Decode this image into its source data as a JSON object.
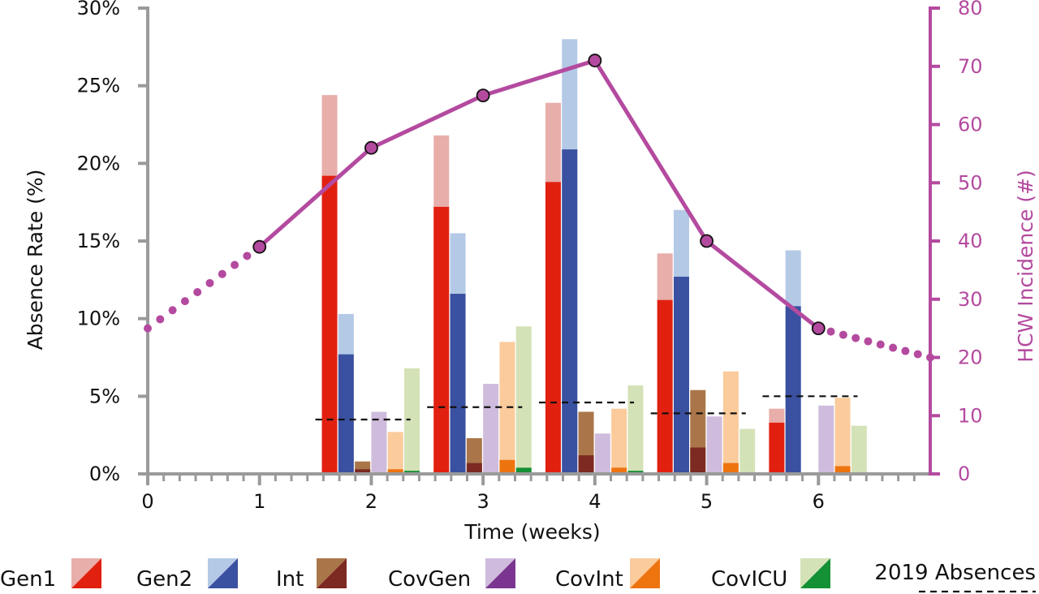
{
  "chart_data": {
    "type": "bar",
    "xlabel": "Time (weeks)",
    "ylabel": "Absence Rate (%)",
    "y2label": "HCW Incidence (#)",
    "xlim": [
      0,
      7
    ],
    "ylim": [
      0,
      30
    ],
    "y2lim": [
      0,
      80
    ],
    "x_ticks": [
      "0",
      "1",
      "2",
      "3",
      "4",
      "5",
      "6"
    ],
    "y_ticks": [
      "0%",
      "5%",
      "10%",
      "15%",
      "20%",
      "25%",
      "30%"
    ],
    "y2_ticks": [
      "0",
      "10",
      "20",
      "30",
      "40",
      "50",
      "60",
      "70",
      "80"
    ],
    "bar_groups": [
      {
        "center": 2,
        "values": {
          "Gen1": [
            19.2,
            24.4
          ],
          "Gen2": [
            7.7,
            10.3
          ],
          "Int": [
            0.3,
            0.8
          ],
          "CovGen": [
            0.0,
            4.0
          ],
          "CovInt": [
            0.3,
            2.7
          ],
          "CovICU": [
            0.2,
            6.8
          ]
        }
      },
      {
        "center": 3,
        "values": {
          "Gen1": [
            17.2,
            21.8
          ],
          "Gen2": [
            11.6,
            15.5
          ],
          "Int": [
            0.7,
            2.3
          ],
          "CovGen": [
            0.0,
            5.8
          ],
          "CovInt": [
            0.9,
            8.5
          ],
          "CovICU": [
            0.4,
            9.5
          ]
        }
      },
      {
        "center": 4,
        "values": {
          "Gen1": [
            18.8,
            23.9
          ],
          "Gen2": [
            20.9,
            28.0
          ],
          "Int": [
            1.2,
            4.0
          ],
          "CovGen": [
            0.0,
            2.6
          ],
          "CovInt": [
            0.4,
            4.2
          ],
          "CovICU": [
            0.2,
            5.7
          ]
        }
      },
      {
        "center": 5,
        "values": {
          "Gen1": [
            11.2,
            14.2
          ],
          "Gen2": [
            12.7,
            17.0
          ],
          "Int": [
            1.7,
            5.4
          ],
          "CovGen": [
            0.0,
            3.7
          ],
          "CovInt": [
            0.7,
            6.6
          ],
          "CovICU": [
            0.0,
            2.9
          ]
        }
      },
      {
        "center": 6,
        "values": {
          "Gen1": [
            3.3,
            4.2
          ],
          "Gen2": [
            10.8,
            14.4
          ],
          "Int": [
            0.0,
            0.0
          ],
          "CovGen": [
            0.0,
            4.4
          ],
          "CovInt": [
            0.5,
            4.9
          ],
          "CovICU": [
            0.0,
            3.1
          ]
        }
      }
    ],
    "incidence_solid": {
      "x": [
        1,
        2,
        3,
        4,
        5,
        6
      ],
      "y": [
        39,
        56,
        65,
        71,
        40,
        25
      ]
    },
    "incidence_dotted_left": {
      "x": [
        0,
        1
      ],
      "y": [
        25,
        39
      ]
    },
    "incidence_dotted_right": {
      "x": [
        6,
        7
      ],
      "y": [
        25,
        20
      ]
    },
    "baseline_2019": [
      {
        "x": [
          1.5,
          2.35
        ],
        "y": 3.5
      },
      {
        "x": [
          2.5,
          3.35
        ],
        "y": 4.3
      },
      {
        "x": [
          3.5,
          4.35
        ],
        "y": 4.6
      },
      {
        "x": [
          4.5,
          5.35
        ],
        "y": 3.9
      },
      {
        "x": [
          5.5,
          6.35
        ],
        "y": 5.0
      }
    ],
    "legend": [
      {
        "name": "Gen1"
      },
      {
        "name": "Gen2"
      },
      {
        "name": "Int"
      },
      {
        "name": "CovGen"
      },
      {
        "name": "CovInt"
      },
      {
        "name": "CovICU"
      }
    ],
    "legend_2019": "2019 Absences",
    "series_colors": {
      "Gen1": {
        "dark": "#e2200f",
        "light": "#e8aeaa"
      },
      "Gen2": {
        "dark": "#3a50a0",
        "light": "#b3c9e6"
      },
      "Int": {
        "dark": "#7c2a22",
        "light": "#aa7649"
      },
      "CovGen": {
        "dark": "#7b3590",
        "light": "#cfbcdd"
      },
      "CovInt": {
        "dark": "#ee7410",
        "light": "#fbcb9c"
      },
      "CovICU": {
        "dark": "#149035",
        "light": "#d4e2b7"
      }
    },
    "line_color": "#b44a9f",
    "axis_color": "#9a9a9a"
  }
}
